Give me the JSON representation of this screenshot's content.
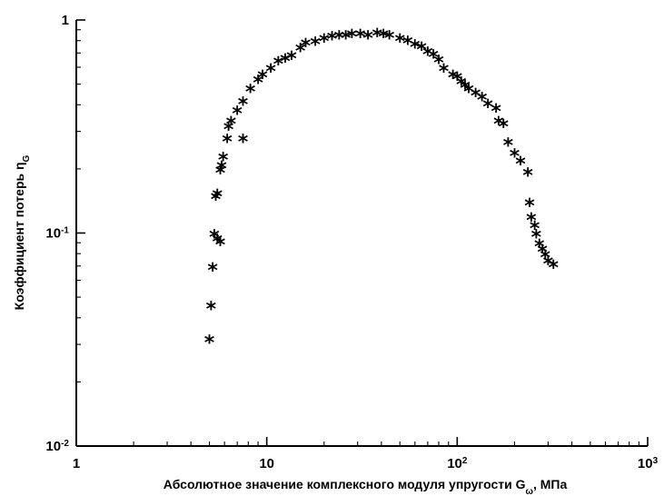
{
  "chart_data": {
    "type": "scatter",
    "x_scale": "log",
    "y_scale": "log",
    "xlim": [
      1,
      1000
    ],
    "ylim": [
      0.01,
      1
    ],
    "grid": false,
    "marker": "*",
    "xlabel": "Абсолютное значение комплексного модуля упругости G",
    "xlabel_sub": "ω",
    "xlabel_unit": ", МПа",
    "ylabel": "Коэффициент потерь η",
    "ylabel_sub": "G",
    "x_ticks": [
      {
        "value": 1,
        "base": "1",
        "exp": ""
      },
      {
        "value": 10,
        "base": "10",
        "exp": ""
      },
      {
        "value": 100,
        "base": "10",
        "exp": "2"
      },
      {
        "value": 1000,
        "base": "10",
        "exp": "3"
      }
    ],
    "y_ticks": [
      {
        "value": 0.01,
        "base": "10",
        "exp": "-2"
      },
      {
        "value": 0.1,
        "base": "10",
        "exp": "-1"
      },
      {
        "value": 1,
        "base": "1",
        "exp": ""
      }
    ],
    "points": [
      {
        "x": 5.0,
        "y": 0.032
      },
      {
        "x": 5.1,
        "y": 0.046
      },
      {
        "x": 5.2,
        "y": 0.07
      },
      {
        "x": 5.3,
        "y": 0.1
      },
      {
        "x": 5.4,
        "y": 0.15
      },
      {
        "x": 5.5,
        "y": 0.155
      },
      {
        "x": 5.5,
        "y": 0.095
      },
      {
        "x": 5.7,
        "y": 0.092
      },
      {
        "x": 5.7,
        "y": 0.2
      },
      {
        "x": 5.8,
        "y": 0.21
      },
      {
        "x": 5.9,
        "y": 0.23
      },
      {
        "x": 6.2,
        "y": 0.28
      },
      {
        "x": 6.3,
        "y": 0.32
      },
      {
        "x": 6.5,
        "y": 0.34
      },
      {
        "x": 7.0,
        "y": 0.38
      },
      {
        "x": 7.5,
        "y": 0.28
      },
      {
        "x": 7.5,
        "y": 0.42
      },
      {
        "x": 8.2,
        "y": 0.48
      },
      {
        "x": 9.0,
        "y": 0.53
      },
      {
        "x": 9.5,
        "y": 0.56
      },
      {
        "x": 10.5,
        "y": 0.6
      },
      {
        "x": 11.5,
        "y": 0.65
      },
      {
        "x": 12.5,
        "y": 0.67
      },
      {
        "x": 13.5,
        "y": 0.69
      },
      {
        "x": 15,
        "y": 0.75
      },
      {
        "x": 16,
        "y": 0.79
      },
      {
        "x": 18,
        "y": 0.8
      },
      {
        "x": 20,
        "y": 0.83
      },
      {
        "x": 22,
        "y": 0.85
      },
      {
        "x": 24,
        "y": 0.86
      },
      {
        "x": 26,
        "y": 0.86
      },
      {
        "x": 28,
        "y": 0.87
      },
      {
        "x": 31,
        "y": 0.87
      },
      {
        "x": 34,
        "y": 0.86
      },
      {
        "x": 38,
        "y": 0.88
      },
      {
        "x": 41,
        "y": 0.87
      },
      {
        "x": 44,
        "y": 0.86
      },
      {
        "x": 50,
        "y": 0.83
      },
      {
        "x": 55,
        "y": 0.81
      },
      {
        "x": 60,
        "y": 0.78
      },
      {
        "x": 65,
        "y": 0.76
      },
      {
        "x": 70,
        "y": 0.72
      },
      {
        "x": 75,
        "y": 0.7
      },
      {
        "x": 80,
        "y": 0.66
      },
      {
        "x": 85,
        "y": 0.6
      },
      {
        "x": 95,
        "y": 0.56
      },
      {
        "x": 100,
        "y": 0.55
      },
      {
        "x": 105,
        "y": 0.52
      },
      {
        "x": 110,
        "y": 0.5
      },
      {
        "x": 115,
        "y": 0.48
      },
      {
        "x": 125,
        "y": 0.46
      },
      {
        "x": 135,
        "y": 0.44
      },
      {
        "x": 145,
        "y": 0.41
      },
      {
        "x": 160,
        "y": 0.39
      },
      {
        "x": 165,
        "y": 0.34
      },
      {
        "x": 175,
        "y": 0.33
      },
      {
        "x": 185,
        "y": 0.27
      },
      {
        "x": 200,
        "y": 0.24
      },
      {
        "x": 215,
        "y": 0.22
      },
      {
        "x": 235,
        "y": 0.195
      },
      {
        "x": 240,
        "y": 0.14
      },
      {
        "x": 245,
        "y": 0.12
      },
      {
        "x": 255,
        "y": 0.11
      },
      {
        "x": 260,
        "y": 0.1
      },
      {
        "x": 270,
        "y": 0.09
      },
      {
        "x": 280,
        "y": 0.085
      },
      {
        "x": 290,
        "y": 0.08
      },
      {
        "x": 300,
        "y": 0.075
      },
      {
        "x": 320,
        "y": 0.072
      }
    ]
  }
}
